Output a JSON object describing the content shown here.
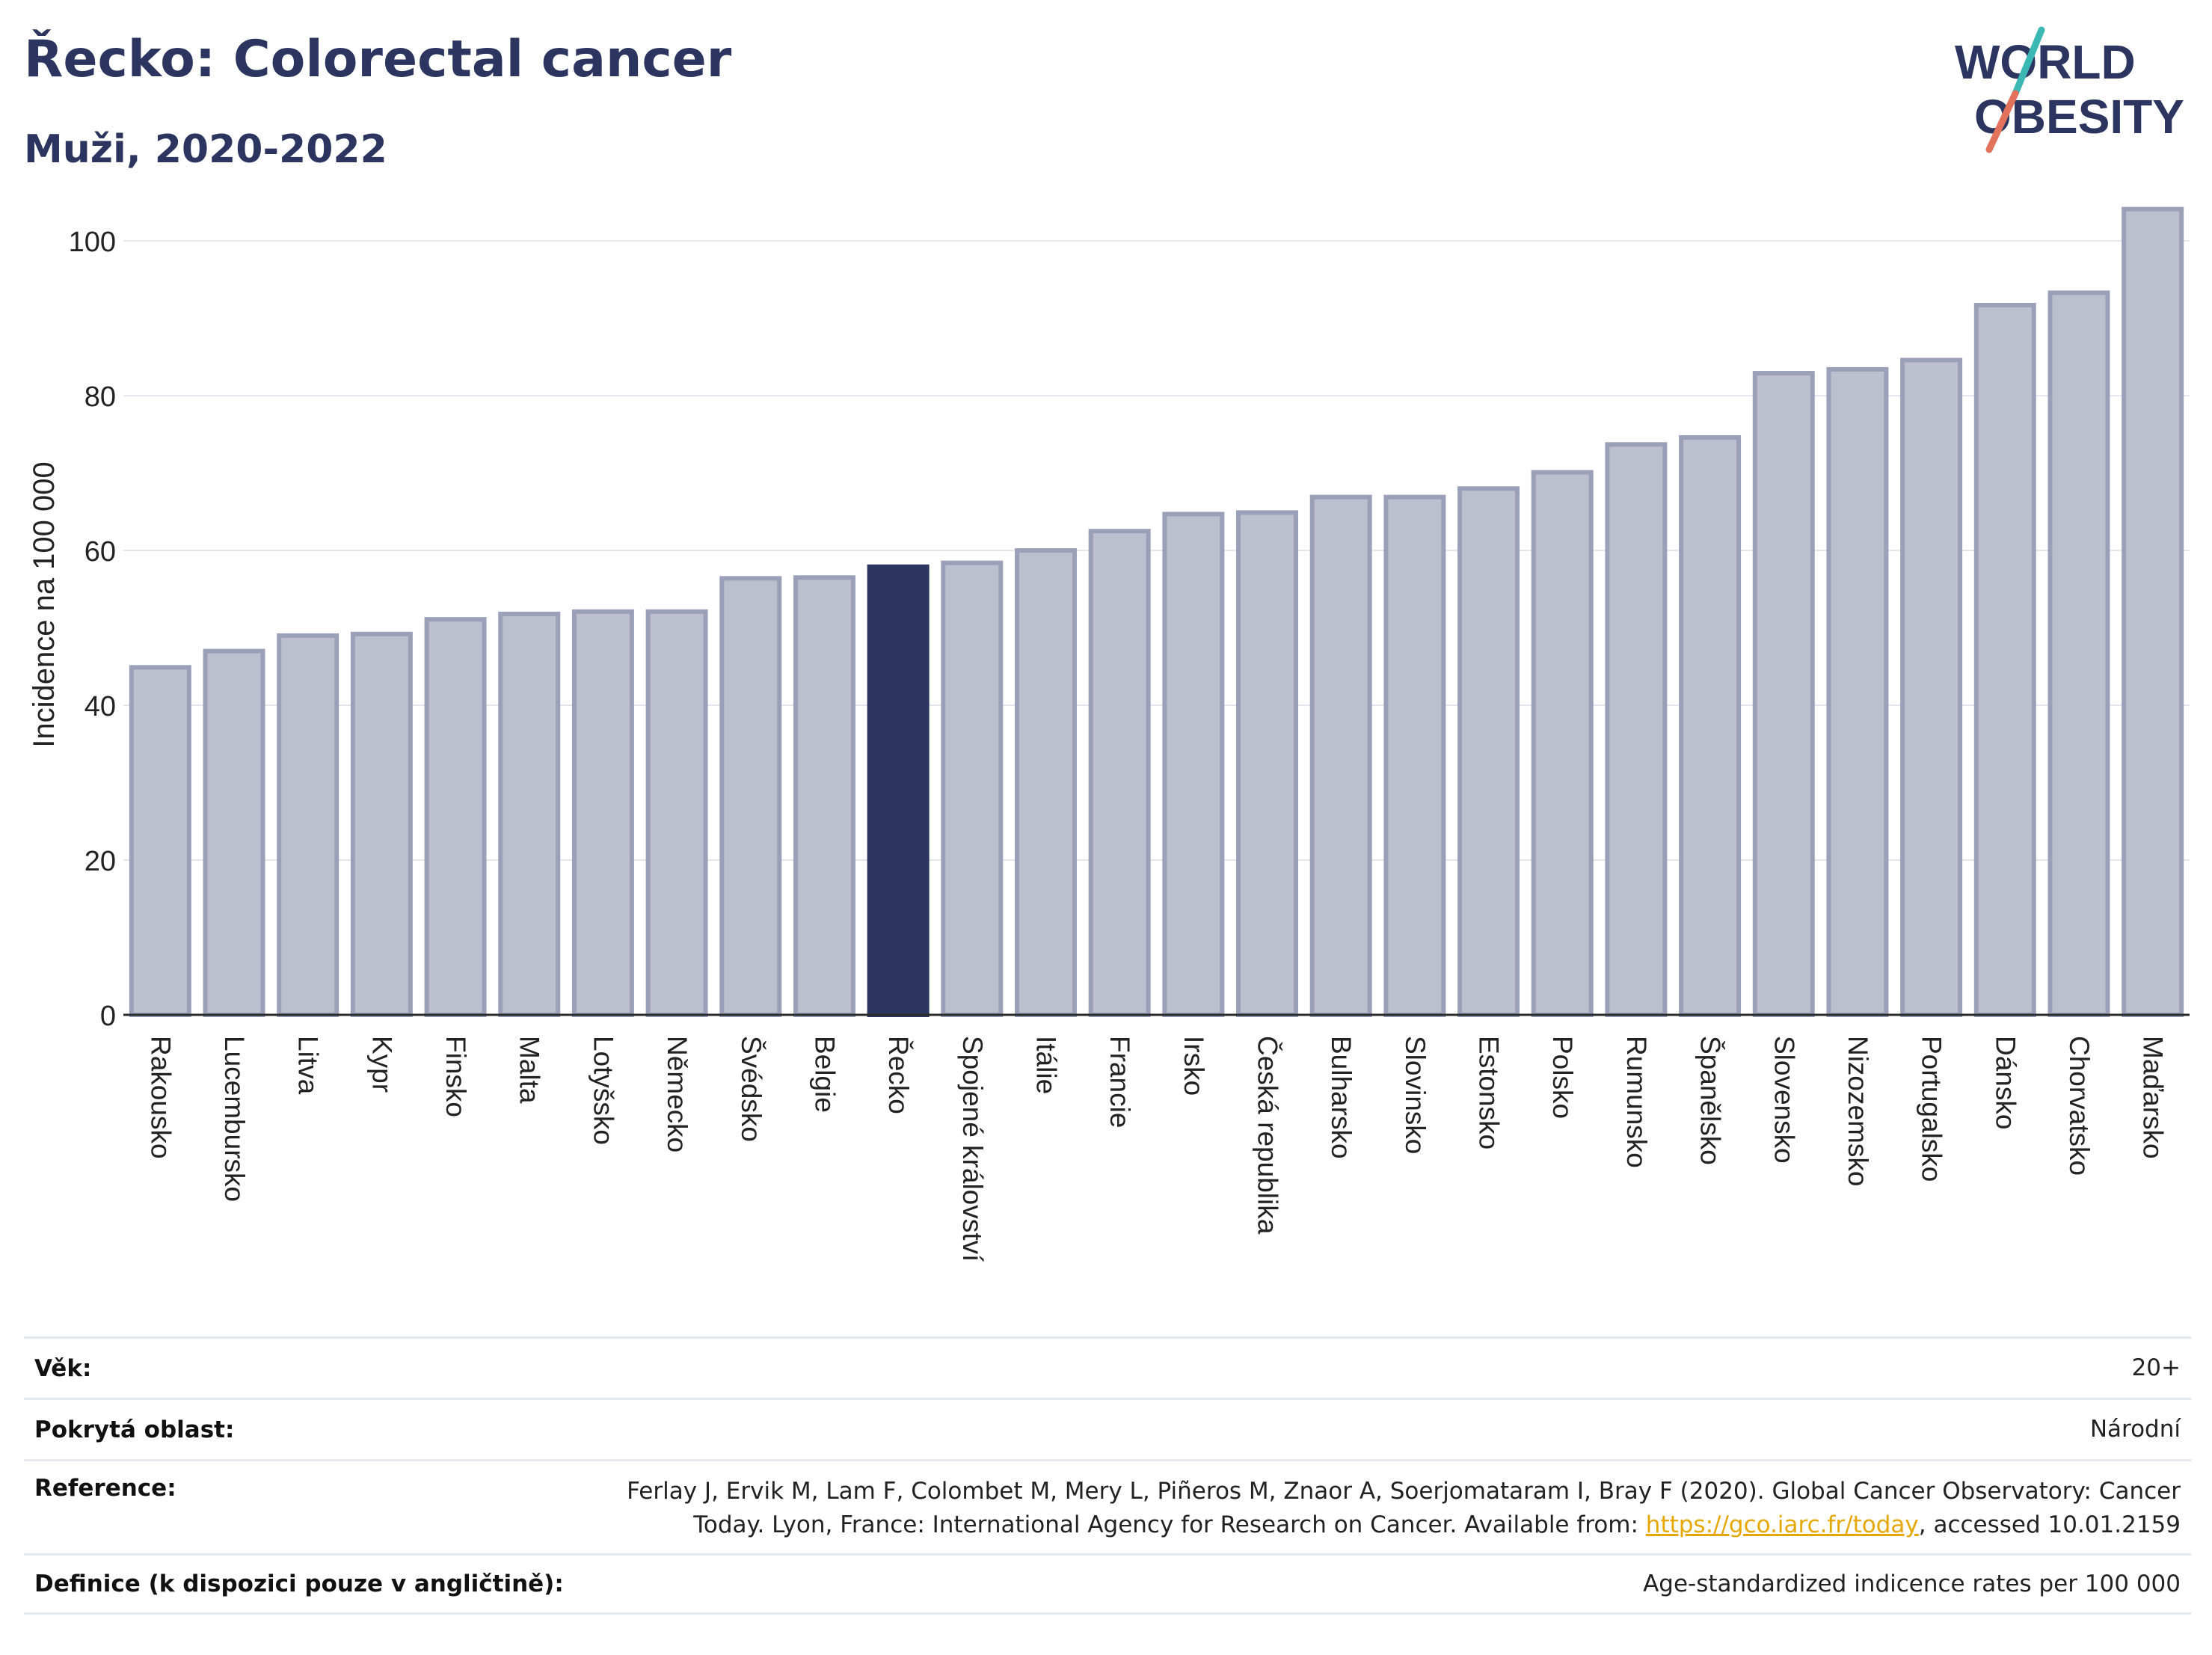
{
  "header": {
    "title": "Řecko: Colorectal cancer",
    "subtitle": "Muži, 2020-2022"
  },
  "logo": {
    "line1": "WORLD",
    "line2": "OBESITY",
    "colors": {
      "text": "#2b3560",
      "slash_teal": "#3bb8b4",
      "slash_coral": "#e2725b"
    }
  },
  "chart_data": {
    "type": "bar",
    "ylabel": "Incidence na 100 000",
    "ylim": [
      0,
      106
    ],
    "yticks": [
      0,
      20,
      40,
      60,
      80,
      100
    ],
    "grid": true,
    "highlight": "Řecko",
    "colors": {
      "bar": "#bcc0ce",
      "bar_edge": "#9aa0b8",
      "highlight": "#2b3560"
    },
    "categories": [
      "Rakousko",
      "Lucembursko",
      "Litva",
      "Kypr",
      "Finsko",
      "Malta",
      "Lotyšsko",
      "Německo",
      "Švédsko",
      "Belgie",
      "Řecko",
      "Spojené království",
      "Itálie",
      "Francie",
      "Irsko",
      "Česká republika",
      "Bulharsko",
      "Slovinsko",
      "Estonsko",
      "Polsko",
      "Rumunsko",
      "Španělsko",
      "Slovensko",
      "Nizozemsko",
      "Portugalsko",
      "Dánsko",
      "Chorvatsko",
      "Maďarsko"
    ],
    "values": [
      44.9,
      47.0,
      49.0,
      49.2,
      51.1,
      51.8,
      52.1,
      52.1,
      56.4,
      56.5,
      57.9,
      58.4,
      60.0,
      62.5,
      64.7,
      64.9,
      66.9,
      66.9,
      68.0,
      70.1,
      73.7,
      74.6,
      82.9,
      83.4,
      84.6,
      91.7,
      93.3,
      104.1
    ]
  },
  "meta": {
    "age": {
      "label": "Věk:",
      "value": "20+"
    },
    "coverage": {
      "label": "Pokrytá oblast:",
      "value": "Národní"
    },
    "reference": {
      "label": "Reference:",
      "text_line1": "Ferlay J, Ervik M, Lam F, Colombet M, Mery L, Piñeros M, Znaor A, Soerjomataram I, Bray F (2020). Global Cancer Observatory: Cancer",
      "text_line2_pre": "Today. Lyon, France: International Agency for Research on Cancer. Available from: ",
      "link": "https://gco.iarc.fr/today",
      "text_line2_post": ", accessed 10.01.2159"
    },
    "definition": {
      "label": "Definice (k dispozici pouze v angličtině):",
      "value": "Age-standardized indicence rates per 100 000"
    }
  }
}
